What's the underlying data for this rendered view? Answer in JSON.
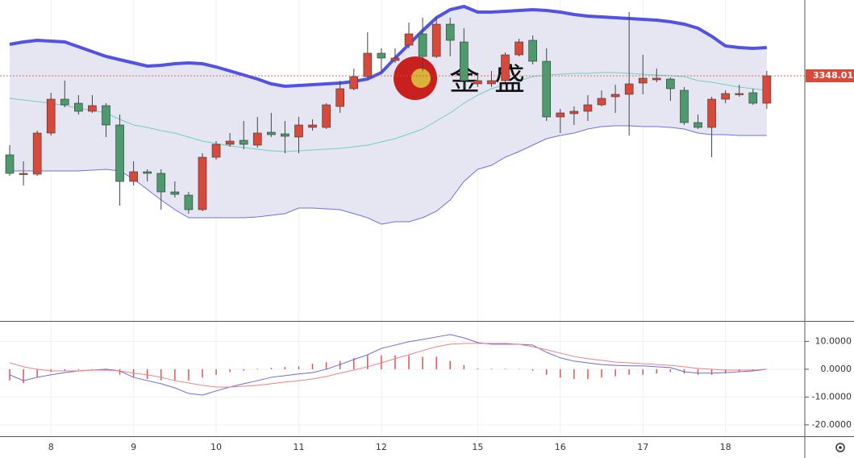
{
  "chart_data": [
    {
      "type": "candlestick",
      "open": [
        3250,
        3227,
        3226,
        3277,
        3319,
        3314,
        3304,
        3311,
        3287,
        3217,
        3229,
        3227,
        3204,
        3200,
        3182,
        3247,
        3263,
        3268,
        3262,
        3278,
        3276,
        3272,
        3284,
        3284,
        3310,
        3332,
        3347,
        3376,
        3367,
        3386,
        3400,
        3372,
        3412,
        3390,
        3338,
        3338,
        3342,
        3374,
        3392,
        3366,
        3297,
        3301,
        3304,
        3312,
        3322,
        3325,
        3339,
        3343,
        3344,
        3330,
        3290,
        3284,
        3319,
        3326,
        3327,
        3314
      ],
      "high": [
        3262,
        3242,
        3280,
        3327,
        3342,
        3324,
        3324,
        3314,
        3300,
        3242,
        3232,
        3232,
        3217,
        3204,
        3252,
        3267,
        3277,
        3292,
        3297,
        3302,
        3292,
        3297,
        3294,
        3314,
        3342,
        3357,
        3402,
        3382,
        3382,
        3414,
        3420,
        3420,
        3420,
        3407,
        3352,
        3354,
        3377,
        3394,
        3398,
        3382,
        3307,
        3310,
        3324,
        3330,
        3337,
        3427,
        3374,
        3357,
        3346,
        3334,
        3300,
        3322,
        3330,
        3337,
        3332,
        3354
      ],
      "low": [
        3224,
        3212,
        3224,
        3274,
        3309,
        3300,
        3302,
        3272,
        3187,
        3212,
        3217,
        3182,
        3197,
        3177,
        3180,
        3244,
        3260,
        3257,
        3259,
        3272,
        3252,
        3252,
        3280,
        3282,
        3302,
        3330,
        3345,
        3352,
        3364,
        3382,
        3354,
        3370,
        3372,
        3332,
        3334,
        3334,
        3340,
        3372,
        3362,
        3292,
        3277,
        3287,
        3292,
        3310,
        3302,
        3274,
        3325,
        3340,
        3317,
        3287,
        3282,
        3247,
        3314,
        3322,
        3312,
        3307
      ],
      "close": [
        3227,
        3227,
        3277,
        3319,
        3312,
        3304,
        3311,
        3287,
        3217,
        3229,
        3227,
        3204,
        3201,
        3182,
        3247,
        3263,
        3267,
        3263,
        3277,
        3275,
        3273,
        3287,
        3287,
        3312,
        3332,
        3347,
        3376,
        3370,
        3370,
        3400,
        3372,
        3412,
        3392,
        3342,
        3342,
        3342,
        3374,
        3390,
        3366,
        3297,
        3302,
        3304,
        3312,
        3320,
        3325,
        3338,
        3345,
        3345,
        3332,
        3290,
        3284,
        3319,
        3326,
        3326,
        3314,
        3348
      ],
      "up_color": "#d9493a",
      "down_color": "#4c9a6e",
      "bands": [
        {
          "color": "#5252e6",
          "values": [
            3387,
            3390,
            3392,
            3391,
            3390,
            3384,
            3378,
            3372,
            3368,
            3364,
            3360,
            3361,
            3363,
            3364,
            3363,
            3359,
            3354,
            3349,
            3344,
            3338,
            3335,
            3336,
            3337,
            3338,
            3339,
            3341,
            3344,
            3352,
            3370,
            3387,
            3404,
            3420,
            3430,
            3434,
            3427,
            3427,
            3428,
            3429,
            3430,
            3429,
            3427,
            3424,
            3422,
            3421,
            3420,
            3419,
            3418,
            3417,
            3415,
            3412,
            3407,
            3397,
            3385,
            3383,
            3382,
            3383
          ]
        },
        {
          "color": "#6fcfbf",
          "values": [
            3320,
            3318,
            3316,
            3314,
            3311,
            3308,
            3305,
            3302,
            3294,
            3287,
            3284,
            3280,
            3277,
            3272,
            3267,
            3264,
            3261,
            3259,
            3257,
            3255,
            3254,
            3255,
            3256,
            3257,
            3258,
            3260,
            3262,
            3266,
            3270,
            3276,
            3282,
            3292,
            3302,
            3314,
            3324,
            3332,
            3337,
            3342,
            3347,
            3349,
            3350,
            3351,
            3351,
            3352,
            3352,
            3351,
            3350,
            3349,
            3348,
            3347,
            3342,
            3340,
            3337,
            3334,
            3332,
            3330
          ]
        },
        {
          "color": "#7070e0",
          "values": [
            3230,
            3230,
            3230,
            3230,
            3230,
            3230,
            3231,
            3232,
            3230,
            3220,
            3207,
            3194,
            3182,
            3172,
            3172,
            3172,
            3172,
            3172,
            3173,
            3175,
            3177,
            3184,
            3184,
            3183,
            3182,
            3177,
            3172,
            3164,
            3167,
            3167,
            3172,
            3180,
            3194,
            3217,
            3232,
            3237,
            3247,
            3254,
            3262,
            3270,
            3274,
            3277,
            3282,
            3285,
            3286,
            3286,
            3285,
            3285,
            3284,
            3282,
            3277,
            3275,
            3275,
            3274,
            3274,
            3274
          ]
        }
      ],
      "band_fill": "#e6e6f3",
      "ylim": [
        3044,
        3442
      ],
      "last_price": 3348.01,
      "last_price_color": "#d9493a",
      "xticks": [
        {
          "value": 3,
          "label": "8"
        },
        {
          "value": 9,
          "label": "9"
        },
        {
          "value": 15,
          "label": "10"
        },
        {
          "value": 21,
          "label": "11"
        },
        {
          "value": 27,
          "label": "12"
        },
        {
          "value": 34,
          "label": "15"
        },
        {
          "value": 40,
          "label": "16"
        },
        {
          "value": 46,
          "label": "17"
        },
        {
          "value": 52,
          "label": "18"
        }
      ],
      "watermark": [
        "金",
        "盛"
      ]
    },
    {
      "type": "macd",
      "series": [
        {
          "color": "#6a6ae0",
          "values": [
            -2.0,
            -4.1,
            -2.9,
            -2.0,
            -1.2,
            -0.6,
            -0.3,
            0,
            -0.6,
            -2.9,
            -4.1,
            -5.2,
            -6.7,
            -8.7,
            -9.3,
            -7.8,
            -6.4,
            -5.2,
            -4.1,
            -2.9,
            -2.3,
            -1.7,
            -1.2,
            0,
            1.7,
            3.5,
            5.2,
            7.5,
            8.7,
            9.9,
            10.7,
            11.6,
            12.5,
            11.3,
            9.6,
            9.0,
            9.0,
            9.0,
            8.7,
            6.1,
            4.1,
            2.9,
            2.3,
            1.7,
            1.4,
            1.2,
            1.2,
            0.9,
            0.6,
            -0.9,
            -1.4,
            -1.4,
            -1.2,
            -0.9,
            -0.6,
            0
          ]
        },
        {
          "color": "#f08080",
          "values": [
            2.3,
            0.9,
            0,
            -0.6,
            -0.6,
            -0.6,
            -0.3,
            -0.3,
            -0.6,
            -1.4,
            -2.0,
            -2.9,
            -4.1,
            -4.9,
            -5.8,
            -6.4,
            -6.4,
            -6.1,
            -5.8,
            -5.2,
            -4.6,
            -4.1,
            -3.5,
            -2.6,
            -1.4,
            -0.3,
            0.9,
            2.3,
            3.8,
            5.2,
            6.7,
            8.1,
            9.0,
            9.3,
            9.3,
            9.3,
            9.3,
            9.0,
            8.1,
            7.0,
            5.8,
            4.6,
            3.8,
            3.2,
            2.6,
            2.3,
            2.0,
            1.7,
            1.4,
            0.9,
            0.3,
            0,
            -0.3,
            -0.3,
            -0.3,
            0
          ]
        }
      ],
      "histogram": {
        "color": "#e0525a",
        "values": [
          -4,
          -5,
          -3,
          -1,
          -0.5,
          -0.3,
          -0.2,
          -0.5,
          -2,
          -3,
          -3.5,
          -4,
          -4,
          -4,
          -3,
          -2,
          -1,
          -0.5,
          0.2,
          0.5,
          0.8,
          1,
          2,
          2.5,
          3,
          4,
          5,
          5,
          5,
          5,
          4.5,
          4.5,
          3,
          1.5,
          0.3,
          0.2,
          0.2,
          0.1,
          -0.5,
          -2,
          -3,
          -3.5,
          -3.5,
          -3,
          -2.5,
          -2,
          -2,
          -1.5,
          -1,
          -1.5,
          -2,
          -2,
          -1.5,
          -1,
          -0.5,
          0
        ]
      },
      "ylim": [
        -23.8,
        16.8
      ],
      "yticks": [
        {
          "value": 10,
          "label": "10.0000"
        },
        {
          "value": 0,
          "label": "0.0000"
        },
        {
          "value": -10,
          "label": "-10.0000"
        },
        {
          "value": -20,
          "label": "-20.0000"
        }
      ]
    }
  ]
}
